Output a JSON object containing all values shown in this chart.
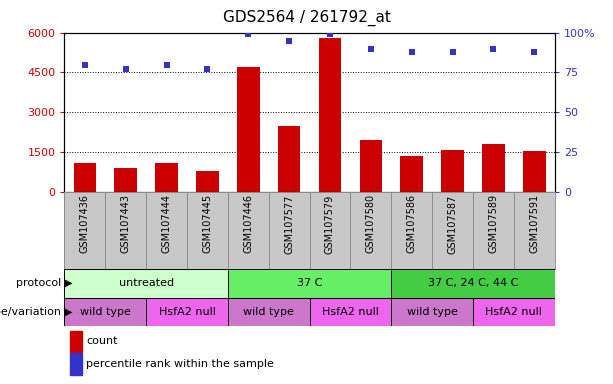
{
  "title": "GDS2564 / 261792_at",
  "samples": [
    "GSM107436",
    "GSM107443",
    "GSM107444",
    "GSM107445",
    "GSM107446",
    "GSM107577",
    "GSM107579",
    "GSM107580",
    "GSM107586",
    "GSM107587",
    "GSM107589",
    "GSM107591"
  ],
  "counts": [
    1100,
    900,
    1100,
    800,
    4700,
    2500,
    5800,
    1950,
    1350,
    1600,
    1800,
    1550
  ],
  "percentiles": [
    80,
    77,
    80,
    77,
    99,
    95,
    99,
    90,
    88,
    88,
    90,
    88
  ],
  "bar_color": "#cc0000",
  "dot_color": "#3333cc",
  "ylim_left": [
    0,
    6000
  ],
  "ylim_right": [
    0,
    100
  ],
  "yticks_left": [
    0,
    1500,
    3000,
    4500,
    6000
  ],
  "yticks_right": [
    0,
    25,
    50,
    75,
    100
  ],
  "ytick_labels_left": [
    "0",
    "1500",
    "3000",
    "4500",
    "6000"
  ],
  "ytick_labels_right": [
    "0",
    "25",
    "50",
    "75",
    "100%"
  ],
  "protocol_groups": [
    {
      "label": "untreated",
      "start": 0,
      "end": 4,
      "color": "#ccffcc"
    },
    {
      "label": "37 C",
      "start": 4,
      "end": 8,
      "color": "#66ee66"
    },
    {
      "label": "37 C, 24 C, 44 C",
      "start": 8,
      "end": 12,
      "color": "#44cc44"
    }
  ],
  "genotype_groups": [
    {
      "label": "wild type",
      "start": 0,
      "end": 2,
      "color": "#cc77cc"
    },
    {
      "label": "HsfA2 null",
      "start": 2,
      "end": 4,
      "color": "#ee66ee"
    },
    {
      "label": "wild type",
      "start": 4,
      "end": 6,
      "color": "#cc77cc"
    },
    {
      "label": "HsfA2 null",
      "start": 6,
      "end": 8,
      "color": "#ee66ee"
    },
    {
      "label": "wild type",
      "start": 8,
      "end": 10,
      "color": "#cc77cc"
    },
    {
      "label": "HsfA2 null",
      "start": 10,
      "end": 12,
      "color": "#ee66ee"
    }
  ],
  "legend_count_color": "#cc0000",
  "legend_dot_color": "#3333cc",
  "protocol_label": "protocol",
  "genotype_label": "genotype/variation",
  "legend_count_label": "count",
  "legend_percentile_label": "percentile rank within the sample",
  "cell_color": "#c8c8c8",
  "cell_edge_color": "#888888"
}
